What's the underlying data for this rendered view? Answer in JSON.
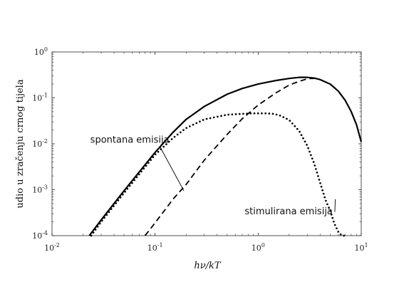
{
  "chart_data": {
    "type": "line",
    "xscale": "log",
    "yscale": "log",
    "xlim": [
      0.01,
      10
    ],
    "ylim": [
      0.0001,
      1
    ],
    "xlabel": "hν/kT",
    "ylabel": "udio u zračenju crnog tijela",
    "grid": false,
    "x_ticks": [
      {
        "value": 0.01,
        "base": "10",
        "exp": "-2"
      },
      {
        "value": 0.1,
        "base": "10",
        "exp": "-1"
      },
      {
        "value": 1,
        "base": "10",
        "exp": "0"
      },
      {
        "value": 10,
        "base": "10",
        "exp": "1"
      }
    ],
    "y_ticks": [
      {
        "value": 0.0001,
        "base": "10",
        "exp": "-4"
      },
      {
        "value": 0.001,
        "base": "10",
        "exp": "-3"
      },
      {
        "value": 0.01,
        "base": "10",
        "exp": "-2"
      },
      {
        "value": 0.1,
        "base": "10",
        "exp": "-1"
      },
      {
        "value": 1,
        "base": "10",
        "exp": "0"
      }
    ],
    "series": [
      {
        "style": "solid",
        "color": "#000000",
        "x": [
          0.023,
          0.03,
          0.05,
          0.1,
          0.15,
          0.2,
          0.3,
          0.5,
          0.7,
          1.0,
          1.5,
          2.0,
          2.5,
          3.0,
          3.5,
          4.0,
          5.0,
          6.0,
          7.0,
          8.0,
          9.0,
          10.0
        ],
        "y": [
          0.0001,
          0.00022,
          0.00095,
          0.0065,
          0.018,
          0.034,
          0.065,
          0.12,
          0.16,
          0.2,
          0.24,
          0.265,
          0.28,
          0.28,
          0.27,
          0.25,
          0.2,
          0.14,
          0.088,
          0.05,
          0.026,
          0.011
        ]
      },
      {
        "style": "dashed",
        "color": "#000000",
        "x": [
          0.08,
          0.1,
          0.15,
          0.2,
          0.3,
          0.5,
          0.7,
          1.0,
          1.5,
          2.0,
          2.5,
          3.0,
          3.3,
          3.5
        ],
        "y": [
          0.0001,
          0.00019,
          0.00063,
          0.0013,
          0.0044,
          0.016,
          0.035,
          0.07,
          0.13,
          0.19,
          0.23,
          0.26,
          0.265,
          0.265
        ]
      },
      {
        "style": "dotted",
        "color": "#000000",
        "x": [
          0.024,
          0.03,
          0.05,
          0.1,
          0.15,
          0.2,
          0.3,
          0.5,
          0.7,
          0.9,
          1.0,
          1.2,
          1.4,
          1.6,
          2.0,
          2.5,
          3.0,
          3.5,
          4.0,
          4.5,
          5.0,
          5.5,
          6.0,
          6.5,
          7.0
        ],
        "y": [
          0.0001,
          0.0002,
          0.00085,
          0.0058,
          0.0135,
          0.022,
          0.034,
          0.043,
          0.045,
          0.046,
          0.046,
          0.046,
          0.045,
          0.042,
          0.033,
          0.019,
          0.009,
          0.0037,
          0.0014,
          0.0006,
          0.00035,
          0.00018,
          0.00012,
          0.0001,
          0.0001
        ]
      }
    ],
    "annotations": [
      {
        "text": "spontana emisija",
        "x_text": 0.0235,
        "y_text": 0.0105,
        "x_end": 0.19,
        "y_end": 0.00095
      },
      {
        "text": "stimulirana emisija",
        "x_text": 0.74,
        "y_text": 0.00029,
        "x_end": 5.6,
        "y_end": 0.00062
      }
    ]
  }
}
